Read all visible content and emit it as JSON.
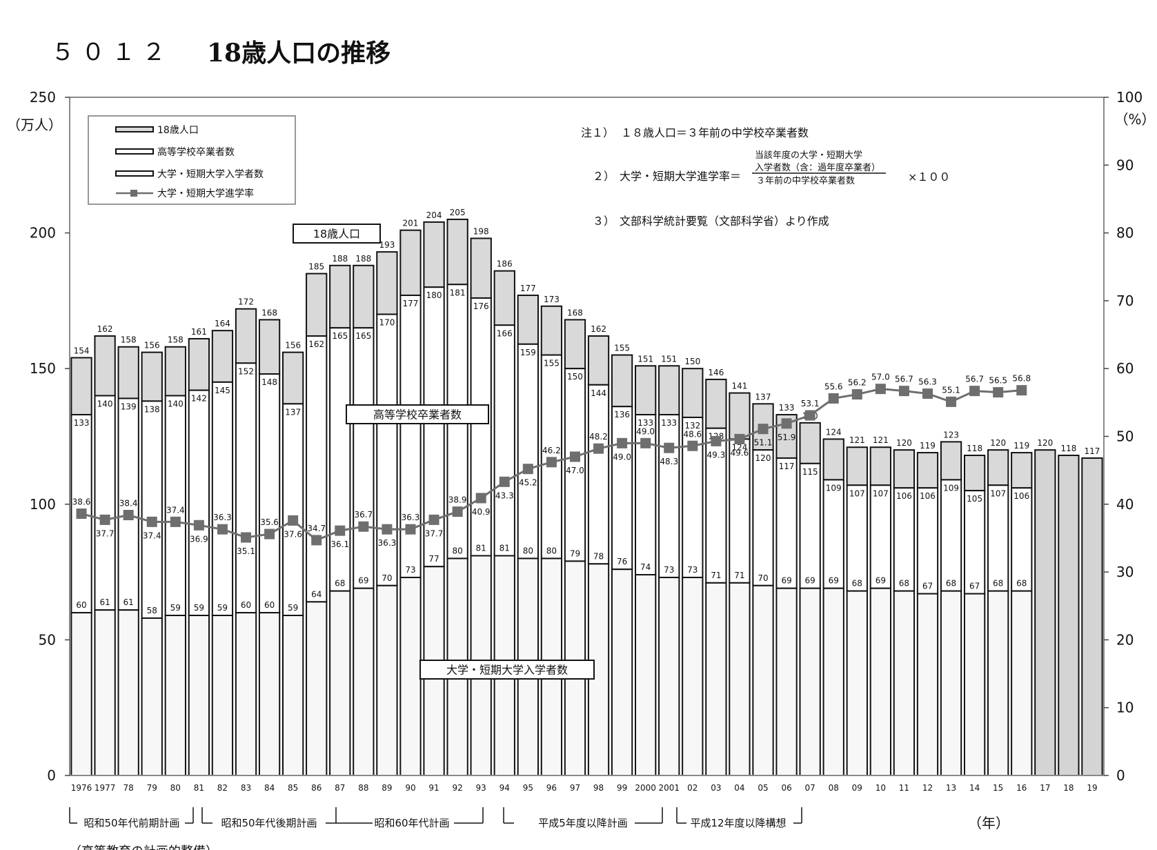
{
  "header": {
    "number": "５０１２",
    "title": "18歳人口の推移"
  },
  "chart_data": {
    "type": "bar",
    "title": "18歳人口の推移",
    "y_left_unit": "（万人）",
    "y_right_unit": "（%）",
    "x_unit": "（年）",
    "ylim_left": [
      0,
      250
    ],
    "ylim_right": [
      0,
      100
    ],
    "left_ticks": [
      "0",
      "50",
      "100",
      "150",
      "200",
      "250"
    ],
    "right_ticks": [
      "0",
      "10",
      "20",
      "30",
      "40",
      "50",
      "60",
      "70",
      "80",
      "90",
      "100"
    ],
    "categories": [
      "1976",
      "1977",
      "78",
      "79",
      "80",
      "81",
      "82",
      "83",
      "84",
      "85",
      "86",
      "87",
      "88",
      "89",
      "90",
      "91",
      "92",
      "93",
      "94",
      "95",
      "96",
      "97",
      "98",
      "99",
      "2000",
      "2001",
      "02",
      "03",
      "04",
      "05",
      "06",
      "07",
      "08",
      "09",
      "10",
      "11",
      "12",
      "13",
      "14",
      "15",
      "16",
      "17",
      "18",
      "19"
    ],
    "series": [
      {
        "name": "18歳人口",
        "values": [
          154,
          162,
          158,
          156,
          158,
          161,
          164,
          172,
          168,
          156,
          185,
          188,
          188,
          193,
          201,
          204,
          205,
          198,
          186,
          177,
          173,
          168,
          162,
          155,
          151,
          151,
          150,
          146,
          141,
          137,
          133,
          130,
          124,
          121,
          121,
          120,
          119,
          123,
          118,
          120,
          119,
          120,
          118,
          117
        ]
      },
      {
        "name": "高等学校卒業者数",
        "values": [
          133,
          140,
          139,
          138,
          140,
          142,
          145,
          152,
          148,
          137,
          162,
          165,
          165,
          170,
          177,
          180,
          181,
          176,
          166,
          159,
          155,
          150,
          144,
          136,
          133,
          133,
          132,
          128,
          124,
          120,
          117,
          115,
          109,
          107,
          107,
          106,
          106,
          109,
          105,
          107,
          106,
          null,
          null,
          null
        ]
      },
      {
        "name": "大学・短期大学入学者数",
        "values": [
          60,
          61,
          61,
          58,
          59,
          59,
          59,
          60,
          60,
          59,
          64,
          68,
          69,
          70,
          73,
          77,
          80,
          81,
          81,
          80,
          80,
          79,
          78,
          76,
          74,
          73,
          73,
          71,
          71,
          70,
          69,
          69,
          69,
          68,
          69,
          68,
          67,
          68,
          67,
          68,
          68,
          null,
          null,
          null
        ]
      },
      {
        "name": "大学・短期大学進学率",
        "values": [
          38.6,
          37.7,
          38.4,
          37.4,
          37.4,
          36.9,
          36.3,
          35.1,
          35.6,
          37.6,
          34.7,
          36.1,
          36.7,
          36.3,
          36.3,
          37.7,
          38.9,
          40.9,
          43.3,
          45.2,
          46.2,
          47.0,
          48.2,
          49.0,
          49.0,
          48.3,
          48.6,
          49.3,
          49.6,
          51.1,
          51.9,
          53.1,
          55.6,
          56.2,
          57.0,
          56.7,
          56.3,
          55.1,
          56.7,
          56.5,
          56.8,
          null,
          null,
          null
        ]
      }
    ],
    "rate_label_above": [
      true,
      false,
      true,
      false,
      true,
      false,
      true,
      false,
      true,
      false,
      true,
      false,
      true,
      false,
      true,
      false,
      true,
      false,
      false,
      false,
      true,
      false,
      true,
      false,
      true,
      false,
      true,
      false,
      false,
      false,
      false,
      true,
      true,
      true,
      true,
      true,
      true,
      true,
      true,
      true,
      true,
      null,
      null,
      null
    ],
    "legend": {
      "placement": "top-left",
      "items": [
        "18歳人口",
        "高等学校卒業者数",
        "大学・短期大学入学者数",
        "大学・短期大学進学率"
      ]
    },
    "callouts": {
      "pop": "18歳人口",
      "hs": "高等学校卒業者数",
      "uni": "大学・短期大学入学者数"
    },
    "notes": {
      "n1_label": "注１）",
      "n1_text": "１８歳人口＝３年前の中学校卒業者数",
      "n2_label": "２）",
      "n2_text": "大学・短期大学進学率＝",
      "n2_top1": "当該年度の大学・短期大学",
      "n2_top2": "入学者数（含：過年度卒業者）",
      "n2_bottom": "３年前の中学校卒業者数",
      "n2_mult": "×１００",
      "n3_label": "３）",
      "n3_text": "文部科学統計要覧（文部科学省）より作成"
    },
    "plans": [
      "昭和50年代前期計画",
      "昭和50年代後期計画",
      "昭和60年代計画",
      "平成5年度以降計画",
      "平成12年度以降構想"
    ],
    "footer_text": "（高等教育の計画的整備）",
    "colors": {
      "pop_fill": "#d9d9d9",
      "hs_fill": "#ffffff",
      "uni_fill": "#f7f7f7",
      "projection_fill": "#d4d4d4",
      "rate_line": "#6e6e6e",
      "rate_marker": "#6e6e6e",
      "frame": "#444444"
    }
  }
}
